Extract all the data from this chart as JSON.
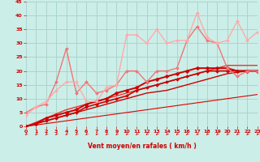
{
  "background_color": "#cceee8",
  "grid_color": "#aad4ce",
  "xlabel": "Vent moyen/en rafales ( km/h )",
  "xlabel_color": "#cc0000",
  "tick_color": "#cc0000",
  "xlim": [
    0,
    23
  ],
  "ylim": [
    0,
    45
  ],
  "yticks": [
    0,
    5,
    10,
    15,
    20,
    25,
    30,
    35,
    40,
    45
  ],
  "xticks": [
    0,
    1,
    2,
    3,
    4,
    5,
    6,
    7,
    8,
    9,
    10,
    11,
    12,
    13,
    14,
    15,
    16,
    17,
    18,
    19,
    20,
    21,
    22,
    23
  ],
  "x": [
    0,
    1,
    2,
    3,
    4,
    5,
    6,
    7,
    8,
    9,
    10,
    11,
    12,
    13,
    14,
    15,
    16,
    17,
    18,
    19,
    20,
    21,
    22,
    23
  ],
  "series": [
    {
      "name": "straight_thin",
      "y": [
        0,
        0.5,
        1,
        1.5,
        2,
        2.5,
        3,
        3.5,
        4,
        4.5,
        5,
        5.5,
        6,
        6.5,
        7,
        7.5,
        8,
        8.5,
        9,
        9.5,
        10,
        10.5,
        11,
        11.5
      ],
      "color": "#dd0000",
      "lw": 0.8,
      "marker": null,
      "ls": "-"
    },
    {
      "name": "smooth_lower",
      "y": [
        0,
        1,
        2,
        3,
        4,
        5,
        6,
        7,
        8,
        9,
        10,
        11,
        12,
        12.5,
        13,
        14,
        15,
        16,
        17,
        18,
        19,
        19.5,
        20,
        20
      ],
      "color": "#cc0000",
      "lw": 1.0,
      "marker": null,
      "ls": "-"
    },
    {
      "name": "smooth_upper",
      "y": [
        0,
        1.5,
        3,
        4.5,
        6,
        7,
        8,
        9,
        10,
        11,
        12,
        13,
        14,
        15,
        16,
        17,
        18,
        19,
        20,
        21,
        22,
        22,
        22,
        22
      ],
      "color": "#ee3333",
      "lw": 1.0,
      "marker": null,
      "ls": "-"
    },
    {
      "name": "marker_lower",
      "y": [
        0,
        1,
        2,
        3,
        4,
        5,
        7,
        8,
        9,
        10,
        11,
        13,
        14,
        15,
        16,
        17,
        18,
        19,
        20,
        20,
        20,
        20,
        20,
        20
      ],
      "color": "#cc0000",
      "lw": 1.2,
      "marker": "D",
      "ms": 2.0,
      "ls": "-"
    },
    {
      "name": "marker_mid",
      "y": [
        0,
        1,
        3,
        4,
        5,
        6,
        8,
        9,
        10,
        12,
        13,
        14,
        16,
        17,
        18,
        19,
        20,
        21,
        21,
        21,
        21,
        20,
        20,
        20
      ],
      "color": "#cc0000",
      "lw": 1.4,
      "marker": "D",
      "ms": 2.5,
      "ls": "-"
    },
    {
      "name": "pink_spiky",
      "y": [
        5,
        7,
        8,
        16,
        28,
        12,
        16,
        12,
        13,
        15,
        20,
        20,
        16,
        20,
        20,
        21,
        31,
        36,
        31,
        30,
        21,
        18,
        20,
        20
      ],
      "color": "#ee7777",
      "lw": 1.0,
      "marker": "D",
      "ms": 2.0,
      "ls": "-"
    },
    {
      "name": "lightpink_spiky",
      "y": [
        4,
        7,
        9,
        13,
        16,
        16,
        9,
        9,
        14,
        15,
        33,
        33,
        30,
        35,
        30,
        31,
        31,
        41,
        32,
        30,
        31,
        38,
        31,
        34
      ],
      "color": "#ffaaaa",
      "lw": 1.0,
      "marker": "D",
      "ms": 2.0,
      "ls": "-"
    }
  ]
}
